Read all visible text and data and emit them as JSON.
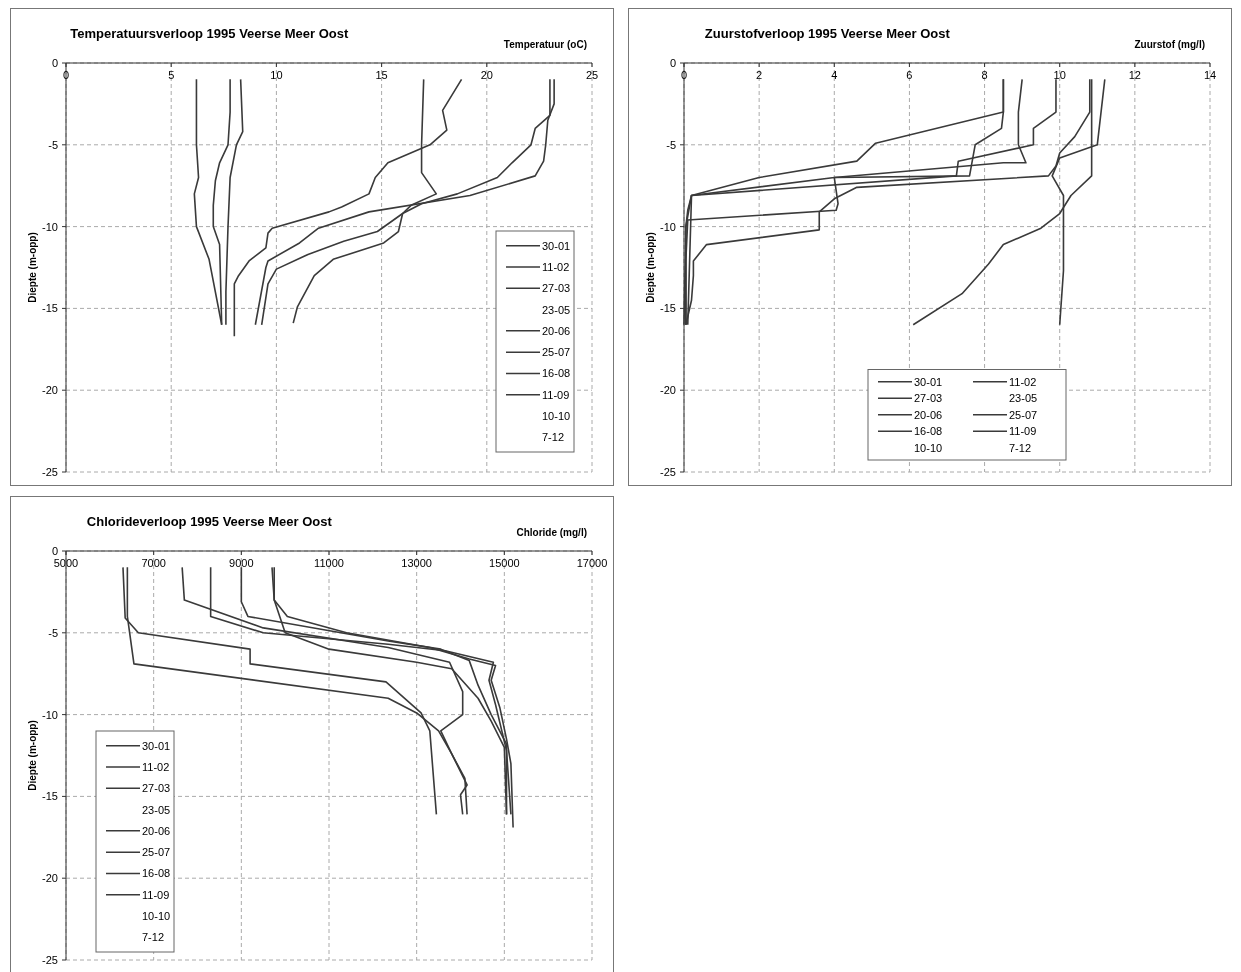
{
  "chart_data": [
    {
      "type": "line",
      "title": "Temperatuursverloop 1995  Veerse Meer Oost",
      "xlabel": "Temperatuur (oC)",
      "ylabel": "Diepte (m-opp)",
      "xlim": [
        0,
        25
      ],
      "xticks": [
        0,
        5,
        10,
        15,
        20,
        25
      ],
      "ylim": [
        -25,
        0
      ],
      "yticks": [
        0,
        -5,
        -10,
        -15,
        -20,
        -25
      ],
      "grid": true,
      "legend": "right",
      "series": [
        {
          "name": "30-01",
          "color": "#3a3a3a",
          "x": [
            6.2,
            6.2,
            6.3,
            6.1,
            6.2,
            6.8,
            7.4
          ],
          "values": [
            -1,
            -5,
            -7,
            -8,
            -10,
            -12,
            -16
          ]
        },
        {
          "name": "11-02",
          "color": "#3a3a3a",
          "x": [
            7.8,
            7.8,
            7.7,
            7.3,
            7.1,
            7.0,
            7.0,
            7.3,
            7.4
          ],
          "values": [
            -1,
            -3,
            -5,
            -6.1,
            -7.2,
            -8.7,
            -10,
            -11.1,
            -16
          ]
        },
        {
          "name": "27-03",
          "color": "#3a3a3a",
          "x": [
            8.3,
            8.4,
            8.1,
            7.8,
            7.7,
            7.6,
            7.6
          ],
          "values": [
            -1,
            -4.2,
            -5,
            -7,
            -10,
            -14,
            -16
          ]
        },
        {
          "name": "23-05"
        },
        {
          "name": "20-06",
          "color": "#3a3a3a",
          "x": [
            18.8,
            17.9,
            18.1,
            17.3,
            15.3,
            14.7,
            14.4,
            13.1,
            12.5,
            9.8,
            9.6,
            9.5,
            8.7,
            8.2,
            8.0,
            8.0
          ],
          "values": [
            -1,
            -2.9,
            -4.1,
            -5,
            -6.1,
            -7,
            -8,
            -8.8,
            -9.1,
            -10.1,
            -10.4,
            -11.3,
            -12.1,
            -13,
            -13.5,
            -16.7
          ]
        },
        {
          "name": "25-07",
          "color": "#3a3a3a",
          "x": [
            23.2,
            23.2,
            22.9,
            22.8,
            22.7,
            22.3,
            19.2,
            14.4,
            12.0,
            11.1,
            9.6,
            9.5,
            9.0
          ],
          "values": [
            -1,
            -2.5,
            -3.5,
            -5,
            -6,
            -6.9,
            -8.1,
            -9.1,
            -10.1,
            -11,
            -12.1,
            -12.5,
            -16
          ]
        },
        {
          "name": "16-08",
          "color": "#3a3a3a",
          "x": [
            23.0,
            23.0,
            22.3,
            22.1,
            21.2,
            20.5,
            18.6,
            16.9,
            16.0,
            14.8,
            13.2,
            11.5,
            10.0,
            9.6,
            9.3
          ],
          "values": [
            -1,
            -3.2,
            -4,
            -5,
            -6.1,
            -7,
            -8,
            -8.6,
            -9.2,
            -10.3,
            -10.9,
            -11.7,
            -12.6,
            -13.5,
            -16
          ]
        },
        {
          "name": "11-09",
          "color": "#3a3a3a",
          "x": [
            17.0,
            16.9,
            16.9,
            17.6,
            16.4,
            16.0,
            15.8,
            15.1,
            12.7,
            11.8,
            11.0,
            10.8
          ],
          "values": [
            -1,
            -5,
            -6.7,
            -8,
            -8.7,
            -9.2,
            -10.3,
            -11,
            -12,
            -13,
            -14.9,
            -15.9
          ]
        },
        {
          "name": "10-10"
        },
        {
          "name": "7-12"
        }
      ]
    },
    {
      "type": "line",
      "title": "Zuurstofverloop 1995  Veerse Meer Oost",
      "xlabel": "Zuurstof (mg/l)",
      "ylabel": "Diepte (m-opp)",
      "xlim": [
        0,
        14
      ],
      "xticks": [
        0,
        2,
        4,
        6,
        8,
        10,
        12,
        14
      ],
      "ylim": [
        -25,
        0
      ],
      "yticks": [
        0,
        -5,
        -10,
        -15,
        -20,
        -25
      ],
      "grid": true,
      "legend": "bottom",
      "series": [
        {
          "name": "30-01",
          "color": "#3a3a3a",
          "x": [
            11.2,
            11.0,
            10.0,
            9.8,
            10.1,
            10.1,
            10.1,
            10.0
          ],
          "values": [
            -1,
            -5,
            -5.8,
            -6.9,
            -8.1,
            -10,
            -12.7,
            -16
          ]
        },
        {
          "name": "11-02",
          "color": "#3a3a3a",
          "x": [
            10.85,
            10.85,
            10.3,
            10.0,
            9.5,
            8.5,
            8.1,
            7.4,
            6.1
          ],
          "values": [
            -1,
            -6.9,
            -8.1,
            -9.2,
            -10.1,
            -11.1,
            -12.3,
            -14.1,
            -16
          ]
        },
        {
          "name": "27-03",
          "color": "#3a3a3a",
          "x": [
            10.8,
            10.8,
            10.4,
            10.0,
            9.9,
            9.7,
            4.6,
            4.0,
            3.6,
            3.6,
            0.6,
            0.25,
            0.25,
            0.2,
            0.05
          ],
          "values": [
            -1,
            -3,
            -4.5,
            -5.5,
            -6.3,
            -6.9,
            -7.6,
            -8.3,
            -9.1,
            -10.2,
            -11.1,
            -12.1,
            -13,
            -14.5,
            -16
          ]
        },
        {
          "name": "23-05"
        },
        {
          "name": "20-06",
          "color": "#3a3a3a",
          "x": [
            9.9,
            9.9,
            9.3,
            9.3,
            7.3,
            7.25,
            0.2,
            0.05,
            0.05
          ],
          "values": [
            -1,
            -3,
            -4,
            -5,
            -6,
            -6.9,
            -8.1,
            -10,
            -16
          ]
        },
        {
          "name": "25-07",
          "color": "#3a3a3a",
          "x": [
            9.0,
            8.9,
            8.9,
            9.1,
            8.5,
            4.0,
            0.2,
            0.1
          ],
          "values": [
            -1,
            -3,
            -5,
            -6.1,
            -6.1,
            -7.0,
            -8.1,
            -16
          ]
        },
        {
          "name": "16-08",
          "color": "#3a3a3a",
          "x": [
            8.5,
            8.5,
            8.45,
            7.75,
            7.6,
            4.0,
            4.1,
            4.05,
            0.1,
            0.05,
            0.05
          ],
          "values": [
            -1,
            -3,
            -4,
            -5,
            -6.9,
            -7.0,
            -8.6,
            -9.0,
            -9.6,
            -12,
            -16
          ]
        },
        {
          "name": "11-09",
          "color": "#3a3a3a",
          "x": [
            8.5,
            8.5,
            5.1,
            4.6,
            2.0,
            0.2,
            0.1,
            0.05,
            0.0
          ],
          "values": [
            -1,
            -3,
            -4.9,
            -6,
            -7,
            -8.1,
            -9,
            -10,
            -16
          ]
        },
        {
          "name": "10-10"
        },
        {
          "name": "7-12"
        }
      ]
    },
    {
      "type": "line",
      "title": "Chlorideverloop 1995  Veerse Meer Oost",
      "xlabel": "Chloride (mg/l)",
      "ylabel": "Diepte (m-opp)",
      "xlim": [
        5000,
        17000
      ],
      "xticks": [
        5000,
        7000,
        9000,
        11000,
        13000,
        15000,
        17000
      ],
      "ylim": [
        -25,
        0
      ],
      "yticks": [
        0,
        -5,
        -10,
        -15,
        -20,
        -25
      ],
      "grid": true,
      "legend": "bottom left",
      "series": [
        {
          "name": "30-01",
          "color": "#3a3a3a",
          "x": [
            6300,
            6350,
            6650,
            9200,
            9200,
            12300,
            13100,
            13300,
            13450
          ],
          "values": [
            -1,
            -4.1,
            -5,
            -6,
            -6.9,
            -8,
            -9.9,
            -11,
            -16.1
          ]
        },
        {
          "name": "11-02",
          "color": "#3a3a3a",
          "x": [
            6400,
            6400,
            6550,
            12350,
            13000,
            13500,
            13800,
            14100,
            14150
          ],
          "values": [
            -1,
            -4,
            -6.9,
            -9,
            -9.9,
            -11,
            -12.4,
            -13.9,
            -16.1
          ]
        },
        {
          "name": "27-03",
          "color": "#3a3a3a",
          "x": [
            7650,
            7700,
            9500,
            12350,
            13750,
            14050,
            14050,
            13550,
            13800,
            14150,
            14000,
            14050
          ],
          "values": [
            -1,
            -3,
            -4.7,
            -5.9,
            -6.8,
            -8.6,
            -10,
            -11,
            -12.4,
            -14.3,
            -14.9,
            -16.1
          ]
        },
        {
          "name": "23-05"
        },
        {
          "name": "20-06",
          "color": "#3a3a3a",
          "x": [
            8300,
            8300,
            9500,
            12350,
            13650,
            14750,
            14650,
            14800,
            15050,
            15150
          ],
          "values": [
            -1,
            -4,
            -5,
            -5.7,
            -6.1,
            -6.8,
            -7.9,
            -9.4,
            -12.2,
            -16.1
          ]
        },
        {
          "name": "25-07",
          "color": "#3a3a3a",
          "x": [
            9000,
            9000,
            9150,
            10850,
            12350,
            13550,
            14200,
            14400,
            14700,
            15050,
            15050
          ],
          "values": [
            -1,
            -3.1,
            -4,
            -4.8,
            -5.5,
            -6,
            -6.7,
            -8.2,
            -10,
            -11.8,
            -16.1
          ]
        },
        {
          "name": "16-08",
          "color": "#3a3a3a",
          "x": [
            9750,
            9750,
            10050,
            11400,
            13300,
            14200,
            14800,
            14700,
            14900,
            15050,
            15150,
            15200
          ],
          "values": [
            -1,
            -3,
            -4,
            -5,
            -5.9,
            -6.6,
            -7,
            -7.9,
            -9.6,
            -11.5,
            -13,
            -16.9
          ]
        },
        {
          "name": "11-09",
          "color": "#3a3a3a",
          "x": [
            9700,
            9750,
            10000,
            10500,
            11000,
            13000,
            13800,
            14400,
            14700,
            15000,
            15050
          ],
          "values": [
            -1,
            -3,
            -5,
            -5.5,
            -6,
            -6.8,
            -7.2,
            -9,
            -10.4,
            -12,
            -16.1
          ]
        },
        {
          "name": "10-10"
        },
        {
          "name": "7-12"
        }
      ]
    }
  ]
}
